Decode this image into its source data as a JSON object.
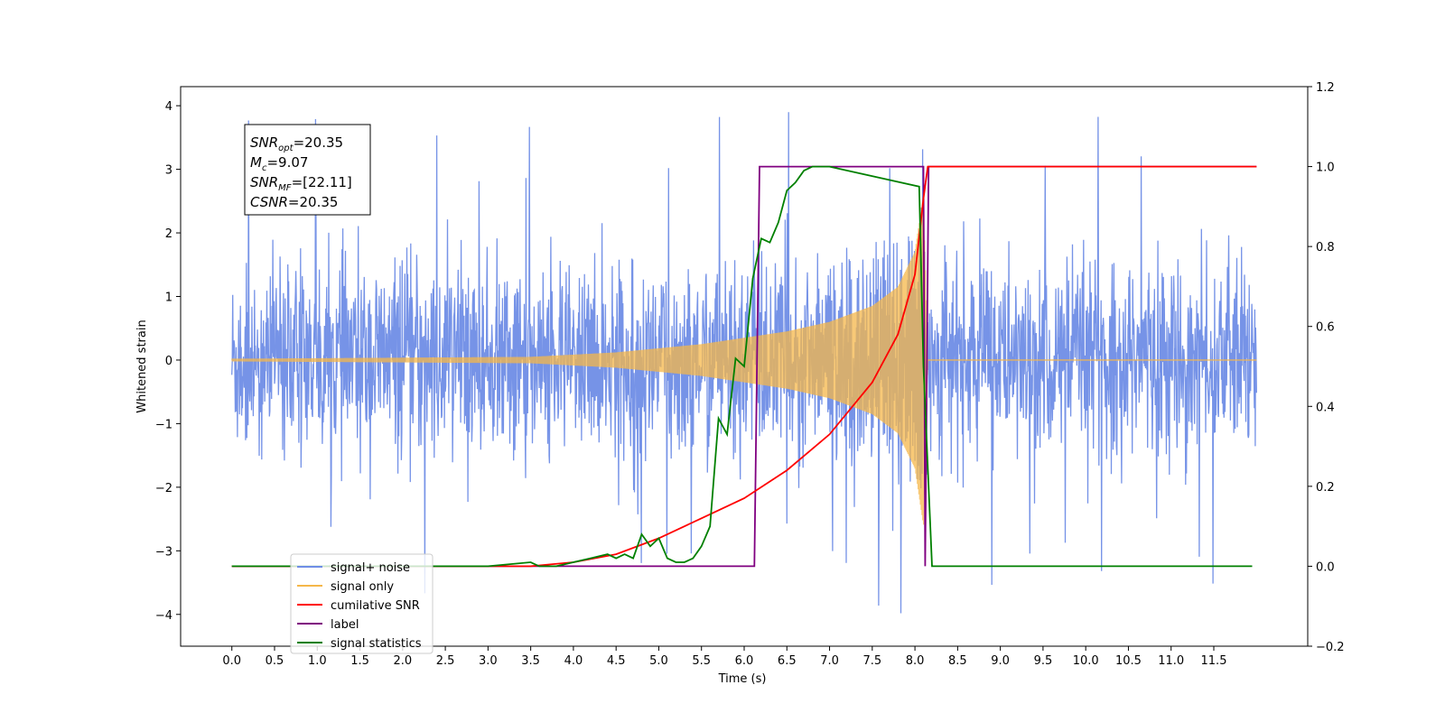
{
  "chart_data": {
    "type": "line",
    "title": "",
    "xlabel": "Time (s)",
    "ylabel": "Whitened strain",
    "xlim": [
      -0.6,
      12.6
    ],
    "ylim": [
      -4.5,
      4.3
    ],
    "y2lim": [
      -0.2,
      1.2
    ],
    "x_ticks": [
      0.0,
      0.5,
      1.0,
      1.5,
      2.0,
      2.5,
      3.0,
      3.5,
      4.0,
      4.5,
      5.0,
      5.5,
      6.0,
      6.5,
      7.0,
      7.5,
      8.0,
      8.5,
      9.0,
      9.5,
      10.0,
      10.5,
      11.0,
      11.5
    ],
    "x_tick_labels": [
      "0.0",
      "0.5",
      "1.0",
      "1.5",
      "2.0",
      "2.5",
      "3.0",
      "3.5",
      "4.0",
      "4.5",
      "5.0",
      "5.5",
      "6.0",
      "6.5",
      "7.0",
      "7.5",
      "8.0",
      "8.5",
      "9.0",
      "9.5",
      "10.0",
      "10.5",
      "11.0",
      "11.5"
    ],
    "y_ticks": [
      4,
      3,
      2,
      1,
      0,
      -1,
      -2,
      -3,
      -4
    ],
    "y_tick_labels": [
      "4",
      "3",
      "2",
      "1",
      "0",
      "−1",
      "−2",
      "−3",
      "−4"
    ],
    "y2_ticks": [
      1.2,
      1.0,
      0.8,
      0.6,
      0.4,
      0.2,
      0.0,
      -0.2
    ],
    "y2_tick_labels": [
      "1.2",
      "1.0",
      "0.8",
      "0.6",
      "0.4",
      "0.2",
      "0.0",
      "−0.2"
    ],
    "grid": false,
    "legend_position": "lower-left",
    "series": [
      {
        "name": "signal+ noise",
        "axis": "left",
        "color": "#6f8de6",
        "description_note": null,
        "x_range": [
          0.0,
          12.0
        ],
        "noise_amplitude_typical": 1.5,
        "noise_amplitude_peak": 3.9
      },
      {
        "name": "signal only",
        "axis": "left",
        "color": "#f5b74a",
        "x_range": [
          0.0,
          8.15
        ],
        "envelope_x": [
          0.0,
          3.5,
          4.5,
          5.5,
          6.0,
          6.5,
          7.0,
          7.5,
          7.8,
          8.0,
          8.1,
          8.15
        ],
        "envelope_y": [
          0.02,
          0.05,
          0.12,
          0.25,
          0.35,
          0.45,
          0.6,
          0.85,
          1.15,
          1.7,
          2.6,
          0.0
        ]
      },
      {
        "name": "cumilative SNR",
        "axis": "right",
        "color": "#ff0000",
        "x": [
          0.0,
          3.5,
          4.0,
          4.5,
          5.0,
          5.5,
          6.0,
          6.5,
          7.0,
          7.5,
          7.8,
          8.0,
          8.1,
          8.15,
          12.0
        ],
        "y": [
          0.0,
          0.0,
          0.01,
          0.03,
          0.07,
          0.12,
          0.17,
          0.24,
          0.33,
          0.46,
          0.58,
          0.73,
          0.92,
          1.0,
          1.0
        ]
      },
      {
        "name": "label",
        "axis": "right",
        "color": "#800080",
        "x": [
          0.0,
          6.12,
          6.18,
          8.1,
          8.12,
          8.16,
          12.0
        ],
        "y": [
          0.0,
          0.0,
          1.0,
          1.0,
          0.0,
          1.0,
          1.0
        ]
      },
      {
        "name": "signal statistics",
        "axis": "right",
        "color": "#008000",
        "x": [
          0.0,
          3.0,
          3.5,
          3.6,
          3.8,
          4.0,
          4.2,
          4.4,
          4.5,
          4.6,
          4.7,
          4.8,
          4.9,
          5.0,
          5.1,
          5.2,
          5.3,
          5.4,
          5.5,
          5.6,
          5.7,
          5.8,
          5.9,
          6.0,
          6.1,
          6.2,
          6.3,
          6.4,
          6.5,
          6.6,
          6.7,
          6.8,
          6.9,
          7.0,
          8.05,
          8.1,
          8.2,
          11.95
        ],
        "y": [
          0.0,
          0.0,
          0.01,
          0.0,
          0.0,
          0.01,
          0.02,
          0.03,
          0.02,
          0.03,
          0.02,
          0.08,
          0.05,
          0.07,
          0.02,
          0.01,
          0.01,
          0.02,
          0.05,
          0.1,
          0.37,
          0.33,
          0.52,
          0.5,
          0.72,
          0.82,
          0.81,
          0.86,
          0.94,
          0.96,
          0.99,
          1.0,
          1.0,
          1.0,
          0.95,
          0.5,
          0.0,
          0.0
        ]
      }
    ],
    "annotation_lines": [
      {
        "sym": "SNR",
        "sub": "opt",
        "rest": "=20.35"
      },
      {
        "sym": "M",
        "sub": "c",
        "rest": "=9.07"
      },
      {
        "sym": "SNR",
        "sub": "MF",
        "rest": "=[22.11]"
      },
      {
        "sym": "CSNR",
        "sub": "",
        "rest": "=20.35"
      }
    ],
    "legend_entries": [
      {
        "label": "signal+ noise",
        "color": "#6f8de6"
      },
      {
        "label": "signal only",
        "color": "#f5b74a"
      },
      {
        "label": "cumilative SNR",
        "color": "#ff0000"
      },
      {
        "label": "label",
        "color": "#800080"
      },
      {
        "label": "signal statistics",
        "color": "#008000"
      }
    ]
  }
}
